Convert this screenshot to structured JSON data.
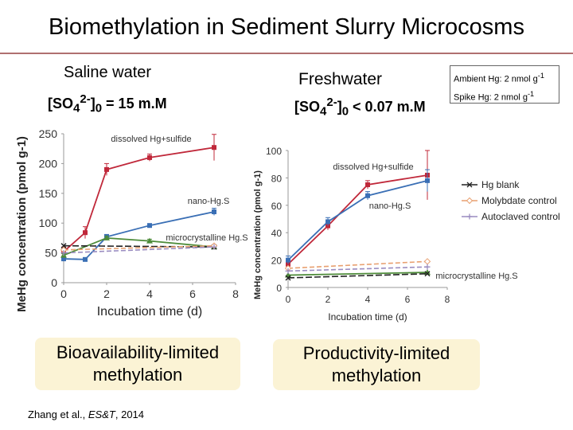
{
  "slide": {
    "title": "Biomethylation in Sediment Slurry Microcosms",
    "citation_pre": "Zhang et al., ",
    "citation_journal": "ES&T",
    "citation_post": ", 2014",
    "saline_heading": "Saline water",
    "fresh_heading": "Freshwater",
    "saline_sulfate": {
      "a": "[SO",
      "sub1": "4",
      "sup": "2-",
      "b": "]",
      "sub2": "0",
      "c": " = 15 m.M"
    },
    "fresh_sulfate": {
      "a": "[SO",
      "sub1": "4",
      "sup": "2-",
      "b": "]",
      "sub2": "0",
      "c": " < 0.07 m.M"
    },
    "note_line1": "Ambient Hg: 2 nmol g",
    "note_line2": "Spike Hg: 2 nmol g",
    "note_sup": "-1",
    "box_left": "Bioavailability-limited methylation",
    "box_right": "Productivity-limited methylation"
  },
  "colors": {
    "dissolved": "#c0283a",
    "nano": "#3a6fb5",
    "micro": "#4e8c3a",
    "hg_blank": "#222222",
    "molybdate": "#e8a070",
    "autoclaved": "#9a8cc0"
  },
  "chart_data": [
    {
      "type": "line",
      "panel": "saline",
      "xlabel": "Incubation time (d)",
      "ylabel": "MeHg concentration (pmol g-1)",
      "xlim": [
        0,
        8
      ],
      "ylim": [
        0,
        250
      ],
      "xticks": [
        0,
        2,
        4,
        6,
        8
      ],
      "yticks": [
        0,
        50,
        100,
        150,
        200,
        250
      ],
      "series": [
        {
          "key": "dissolved",
          "x": [
            0,
            1,
            2,
            4,
            7
          ],
          "y": [
            52,
            84,
            190,
            210,
            227
          ],
          "err": [
            8,
            10,
            10,
            6,
            22
          ]
        },
        {
          "key": "nano",
          "x": [
            0,
            1,
            2,
            4,
            7
          ],
          "y": [
            40,
            39,
            77,
            96,
            119
          ],
          "err": [
            4,
            3,
            4,
            3,
            6
          ]
        },
        {
          "key": "micro",
          "x": [
            0,
            2,
            4,
            7
          ],
          "y": [
            46,
            75,
            70,
            60
          ],
          "err": [
            3,
            3,
            3,
            3
          ]
        },
        {
          "key": "hg_blank",
          "x": [
            0,
            7
          ],
          "y": [
            62,
            60
          ],
          "err": [
            0,
            0
          ]
        },
        {
          "key": "molybdate",
          "x": [
            0,
            7
          ],
          "y": [
            55,
            62
          ],
          "err": [
            0,
            0
          ]
        },
        {
          "key": "autoclaved",
          "x": [
            0,
            7
          ],
          "y": [
            50,
            60
          ],
          "err": [
            0,
            0
          ]
        }
      ],
      "annotations": [
        {
          "text": "dissolved Hg+sulfide",
          "series": "dissolved"
        },
        {
          "text": "nano-Hg.S",
          "series": "nano"
        },
        {
          "text": "microcrystalline Hg.S",
          "series": "micro"
        }
      ]
    },
    {
      "type": "line",
      "panel": "freshwater",
      "xlabel": "Incubation time (d)",
      "ylabel": "MeHg concentration (pmol g-1)",
      "xlim": [
        0,
        8
      ],
      "ylim": [
        0,
        100
      ],
      "xticks": [
        0,
        2,
        4,
        6,
        8
      ],
      "yticks": [
        0,
        20,
        40,
        60,
        80,
        100
      ],
      "series": [
        {
          "key": "dissolved",
          "x": [
            0,
            2,
            4,
            7
          ],
          "y": [
            17,
            45,
            75,
            82
          ],
          "err": [
            3,
            3,
            3,
            18
          ]
        },
        {
          "key": "nano",
          "x": [
            0,
            2,
            4,
            7
          ],
          "y": [
            20,
            48,
            67,
            78
          ],
          "err": [
            3,
            3,
            3,
            8
          ]
        },
        {
          "key": "micro",
          "x": [
            0,
            7
          ],
          "y": [
            9,
            11
          ],
          "err": [
            0,
            0
          ]
        },
        {
          "key": "hg_blank",
          "x": [
            0,
            7
          ],
          "y": [
            7,
            10
          ],
          "err": [
            0,
            0
          ]
        },
        {
          "key": "molybdate",
          "x": [
            0,
            7
          ],
          "y": [
            14,
            19
          ],
          "err": [
            0,
            0
          ]
        },
        {
          "key": "autoclaved",
          "x": [
            0,
            7
          ],
          "y": [
            12,
            15
          ],
          "err": [
            0,
            0
          ]
        }
      ],
      "annotations": [
        {
          "text": "dissolved Hg+sulfide",
          "series": "dissolved"
        },
        {
          "text": "nano-Hg.S",
          "series": "nano"
        },
        {
          "text": "microcrystalline Hg.S",
          "series": "micro"
        }
      ],
      "legend": {
        "placement": "right",
        "entries": [
          {
            "key": "hg_blank",
            "label": "Hg blank"
          },
          {
            "key": "molybdate",
            "label": "Molybdate control"
          },
          {
            "key": "autoclaved",
            "label": "Autoclaved control"
          }
        ]
      }
    }
  ]
}
